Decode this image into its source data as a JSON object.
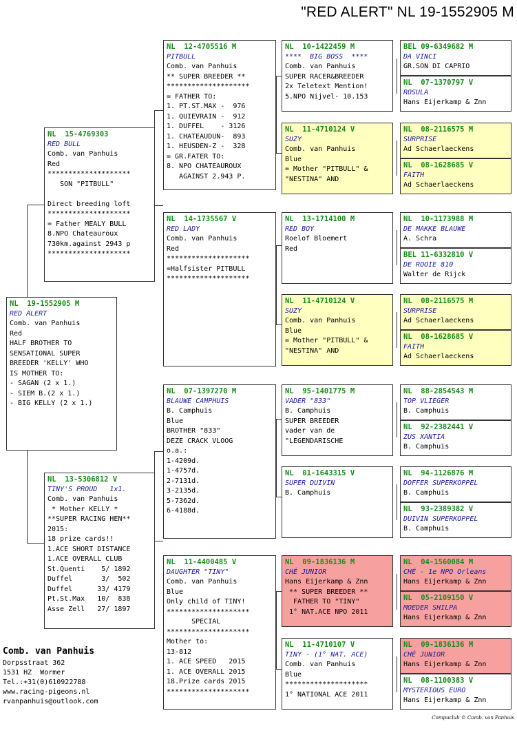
{
  "title": "\"RED ALERT\"  NL  19-1552905 M",
  "boxes": {
    "s": {
      "ring": "NL  19-1552905 M",
      "name": "RED ALERT",
      "lines": [
        "Comb. van Panhuis",
        "Red",
        "HALF BROTHER TO",
        "SENSATIONAL SUPER",
        "BREEDER 'KELLY' WHO",
        "IS MOTHER TO:",
        "- SAGAN (2 x 1.)",
        "- SIEM B.(2 x 1.)",
        "- BIG KELLY (2 x 1.)"
      ]
    },
    "f": {
      "ring": "NL  15-4769303",
      "name": "RED BULL",
      "lines": [
        "Comb. van Panhuis",
        "Red",
        "********************",
        "   SON \"PITBULL\"",
        "",
        "Direct breeding loft",
        "********************",
        "= Father MEALY BULL",
        "8.NPO Chateauroux",
        "730km.against 2943 p",
        "********************"
      ]
    },
    "m": {
      "ring": "NL  13-5306812 V",
      "name": "TINY'S PROUD   1x1.",
      "lines": [
        "Comb. van Panhuis",
        " * Mother KELLY *",
        "**SUPER RACING HEN**",
        "2015:",
        "18 prize cards!!",
        "1.ACE SHORT DISTANCE",
        "1.ACE OVERALL CLUB",
        "St.Quenti    5/ 1892",
        "Duffel       3/  502",
        "Duffel      33/ 4179",
        "Pt.St.Max   10/  838",
        "Asse Zell   27/ 1897"
      ]
    },
    "ff": {
      "ring": "NL  12-4705516 M",
      "name": "PITBULL",
      "lines": [
        "Comb. van Panhuis",
        "** SUPER BREEDER **",
        "********************",
        "= FATHER TO:",
        "1. PT.ST.MAX -  976",
        "1. QUIEVRAIN -  912",
        "1. DUFFEL    - 3126",
        "1. CHATEAUDUN-  893",
        "1. HEUSDEN-Z -  328",
        "= GR.FATER TO:",
        "8. NPO CHATEAUROUX",
        "   AGAINST 2.943 P."
      ]
    },
    "fm": {
      "ring": "NL  14-1735567 V",
      "name": "RED LADY",
      "lines": [
        "Comb. van Panhuis",
        "Red",
        "********************",
        "=Halfsister PITBULL",
        "********************"
      ]
    },
    "mf": {
      "ring": "NL  07-1397270 M",
      "name": "BLAUWE CAMPHUIS",
      "lines": [
        "B. Camphuis",
        "Blue",
        "BROTHER \"833\"",
        "DEZE CRACK VLOOG",
        "o.a.:",
        "1-4209d.",
        "1-4757d.",
        "2-7131d.",
        "3-2135d.",
        "5-7362d.",
        "6-4188d."
      ]
    },
    "mm": {
      "ring": "NL  11-4400485 V",
      "name": "DAUGHTER \"TINY\"",
      "lines": [
        "Comb. van Panhuis",
        "Blue",
        "Only child of TINY!",
        "********************",
        "      SPECIAL",
        "********************",
        "Mother to:",
        "13-812",
        "1. ACE SPEED   2015",
        "1. ACE OVERALL 2015",
        "18.Prize cards 2015",
        "********************"
      ]
    },
    "fff": {
      "ring": "NL  10-1422459 M",
      "name": "****  BIG BOSS  ****",
      "lines": [
        "Comb. van Panhuis",
        "SUPER RACER&BREEDER",
        "2x Teletext Mention!",
        "5.NPO Nijvel- 10.153"
      ]
    },
    "ffm": {
      "ring": "NL  11-4710124 V",
      "name": "SUZY",
      "lines": [
        "Comb. van Panhuis",
        "Blue",
        "= Mother \"PITBULL\" &",
        "\"NESTINA\" AND"
      ]
    },
    "fmf": {
      "ring": "NL  13-1714100 M",
      "name": "RED BOY",
      "lines": [
        "Roelof Bloemert",
        "Red"
      ]
    },
    "fmm": {
      "ring": "NL  11-4710124 V",
      "name": "SUZY",
      "lines": [
        "Comb. van Panhuis",
        "Blue",
        "= Mother \"PITBULL\" &",
        "\"NESTINA\" AND"
      ]
    },
    "mff": {
      "ring": "NL  95-1401775 M",
      "name": "VADER \"833\"",
      "lines": [
        "B. Camphuis",
        "SUPER BREEDER",
        "vader van de",
        "\"LEGENDARISCHE"
      ]
    },
    "mfm": {
      "ring": "NL  01-1643315 V",
      "name": "SUPER DUIVIN",
      "lines": [
        "B. Camphuis"
      ]
    },
    "mmf": {
      "ring": "NL  09-1836136 M",
      "name": "CHÉ JUNIOR",
      "lines": [
        "Hans Eijerkamp & Znn",
        " ** SUPER BREEDER **",
        "  FATHER TO \"TINY\"",
        " 1° NAT.ACE NPO 2011"
      ]
    },
    "mmm": {
      "ring": "NL  11-4710107 V",
      "name": "TINY - (1° NAT. ACE)",
      "lines": [
        "Comb. van Panhuis",
        "Blue",
        "********************",
        "1° NATIONAL ACE 2011"
      ]
    },
    "g1": {
      "ring": "BEL 09-6349682 M",
      "name": "DA VINCI",
      "lines": [
        "GR.SON DI CAPRIO"
      ]
    },
    "g2": {
      "ring": "NL  07-1370797 V",
      "name": "ROSULA",
      "lines": [
        "Hans Eijerkamp & Znn"
      ]
    },
    "g3": {
      "ring": "NL  08-2116575 M",
      "name": "SURPRISE",
      "lines": [
        "Ad Schaerlaeckens"
      ]
    },
    "g4": {
      "ring": "NL  08-1628685 V",
      "name": "FAITH",
      "lines": [
        "Ad Schaerlaeckens"
      ]
    },
    "g5": {
      "ring": "NL  10-1173988 M",
      "name": "DE MAKKE BLAUWE",
      "lines": [
        "A. Schra"
      ]
    },
    "g6": {
      "ring": "BEL 11-6332810 V",
      "name": "DE ROOIE 810",
      "lines": [
        "Walter de Rijck"
      ]
    },
    "g7": {
      "ring": "NL  08-2116575 M",
      "name": "SURPRISE",
      "lines": [
        "Ad Schaerlaeckens"
      ]
    },
    "g8": {
      "ring": "NL  08-1628685 V",
      "name": "FAITH",
      "lines": [
        "Ad Schaerlaeckens"
      ]
    },
    "g9": {
      "ring": "NL  88-2854543 M",
      "name": "TOP VLIEGER",
      "lines": [
        "B. Camphuis"
      ]
    },
    "g10": {
      "ring": "NL  92-2382441 V",
      "name": "ZUS XANTIA",
      "lines": [
        "B. Camphuis"
      ]
    },
    "g11": {
      "ring": "NL  94-1126876 M",
      "name": "DOFFER SUPERKOPPEL",
      "lines": [
        "B. Camphuis"
      ]
    },
    "g12": {
      "ring": "NL  93-2389382 V",
      "name": "DUIVIN SUPERKOPPEL",
      "lines": [
        "B. Camphuis"
      ]
    },
    "g13": {
      "ring": "NL  04-1560084 M",
      "name": "CHÉ - 1e NPO Orleans",
      "lines": [
        "Hans Eijerkamp & Znn"
      ]
    },
    "g14": {
      "ring": "NL  05-2109150 V",
      "name": "MOEDER SHILPA",
      "lines": [
        "Hans Eijerkamp & Znn"
      ]
    },
    "g15": {
      "ring": "NL  09-1836136 M",
      "name": "CHÉ JUNIOR",
      "lines": [
        "Hans Eijerkamp & Znn"
      ]
    },
    "g16": {
      "ring": "NL  08-1100383 V",
      "name": "MYSTERIOUS EURO",
      "lines": [
        "Hans Eijerkamp & Znn"
      ]
    }
  },
  "owner": {
    "name": "Comb. van Panhuis",
    "lines": [
      "Dorpsstraat 362",
      "1531 HZ  Wormer",
      "Tel.:+31(0)610922788",
      "www.racing-pigeons.nl",
      "rvanpanhuis@outlook.com"
    ]
  },
  "footer": "Compuclub © Comb. van Panhuis",
  "colors": {
    "ring_green": "#1a8a1a",
    "name_blue": "#1a1a9a",
    "yellow_fill": "#ffffc0",
    "red_fill": "#f7a0a0"
  }
}
